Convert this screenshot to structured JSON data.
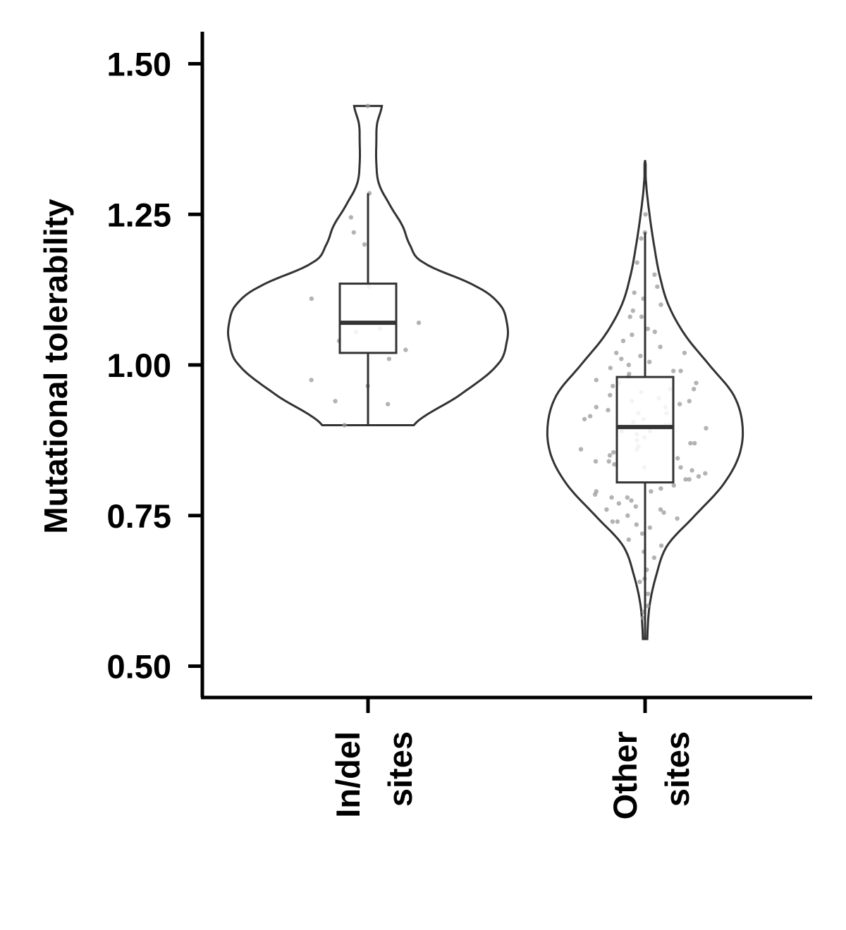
{
  "chart_data": {
    "type": "violin",
    "ylabel": "Mutational tolerability",
    "xlabel": "",
    "ylim": [
      0.45,
      1.55
    ],
    "yticks": [
      0.5,
      0.75,
      1.0,
      1.25,
      1.5
    ],
    "ytick_labels": [
      "0.50",
      "0.75",
      "1.00",
      "1.25",
      "1.50"
    ],
    "grid": false,
    "categories": [
      {
        "label_lines": [
          "In/del",
          "sites"
        ]
      },
      {
        "label_lines": [
          "Other",
          "sites"
        ]
      }
    ],
    "groups": [
      {
        "violin_range": [
          0.9,
          1.43
        ],
        "box": {
          "min": 0.9,
          "q1": 1.02,
          "median": 1.07,
          "q3": 1.135,
          "max": 1.285
        },
        "density": [
          [
            0.9,
            0.33
          ],
          [
            0.95,
            0.66
          ],
          [
            1.0,
            0.93
          ],
          [
            1.04,
            1.0
          ],
          [
            1.07,
            1.0
          ],
          [
            1.1,
            0.95
          ],
          [
            1.13,
            0.78
          ],
          [
            1.17,
            0.4
          ],
          [
            1.2,
            0.3
          ],
          [
            1.23,
            0.25
          ],
          [
            1.26,
            0.17
          ],
          [
            1.3,
            0.08
          ],
          [
            1.335,
            0.06
          ],
          [
            1.37,
            0.06
          ],
          [
            1.4,
            0.065
          ],
          [
            1.43,
            0.1
          ]
        ],
        "points": [
          1.43,
          1.285,
          1.245,
          1.22,
          1.2,
          1.13,
          1.11,
          1.07,
          1.06,
          1.055,
          1.04,
          1.025,
          1.01,
          0.975,
          0.965,
          0.94,
          0.935,
          0.9
        ]
      },
      {
        "violin_range": [
          0.545,
          1.34
        ],
        "box": {
          "min": 0.545,
          "q1": 0.805,
          "median": 0.897,
          "q3": 0.98,
          "max": 1.22
        },
        "density": [
          [
            0.545,
            0.02
          ],
          [
            0.6,
            0.04
          ],
          [
            0.65,
            0.1
          ],
          [
            0.7,
            0.2
          ],
          [
            0.75,
            0.45
          ],
          [
            0.8,
            0.7
          ],
          [
            0.85,
            0.85
          ],
          [
            0.9,
            0.88
          ],
          [
            0.95,
            0.8
          ],
          [
            1.0,
            0.58
          ],
          [
            1.05,
            0.36
          ],
          [
            1.1,
            0.21
          ],
          [
            1.15,
            0.13
          ],
          [
            1.2,
            0.08
          ],
          [
            1.25,
            0.04
          ],
          [
            1.3,
            0.01
          ],
          [
            1.34,
            0.0
          ]
        ],
        "points": [
          1.25,
          1.22,
          1.21,
          1.17,
          1.15,
          1.13,
          1.12,
          1.11,
          1.1,
          1.09,
          1.08,
          1.06,
          1.055,
          1.05,
          1.04,
          1.02,
          1.015,
          1.01,
          1.005,
          1.0,
          0.995,
          0.99,
          0.985,
          0.98,
          0.975,
          0.97,
          0.965,
          0.96,
          0.955,
          0.95,
          0.945,
          0.94,
          0.935,
          0.93,
          0.93,
          0.925,
          0.92,
          0.915,
          0.91,
          0.905,
          0.9,
          0.9,
          0.895,
          0.89,
          0.885,
          0.88,
          0.875,
          0.87,
          0.865,
          0.86,
          0.855,
          0.85,
          0.845,
          0.84,
          0.835,
          0.83,
          0.825,
          0.82,
          0.815,
          0.81,
          0.8,
          0.795,
          0.79,
          0.785,
          0.78,
          0.775,
          0.77,
          0.765,
          0.76,
          0.755,
          0.75,
          0.745,
          0.74,
          0.735,
          0.73,
          0.72,
          0.71,
          0.7,
          0.69,
          0.68,
          0.66,
          0.645,
          0.64,
          0.62,
          0.6,
          0.59,
          0.58,
          1.08,
          1.03,
          0.96,
          0.92,
          0.87,
          0.84,
          0.81,
          0.78,
          0.76,
          0.74,
          0.86,
          0.89,
          0.94,
          0.99,
          1.02,
          0.83,
          0.79,
          0.97,
          0.91
        ]
      }
    ]
  }
}
